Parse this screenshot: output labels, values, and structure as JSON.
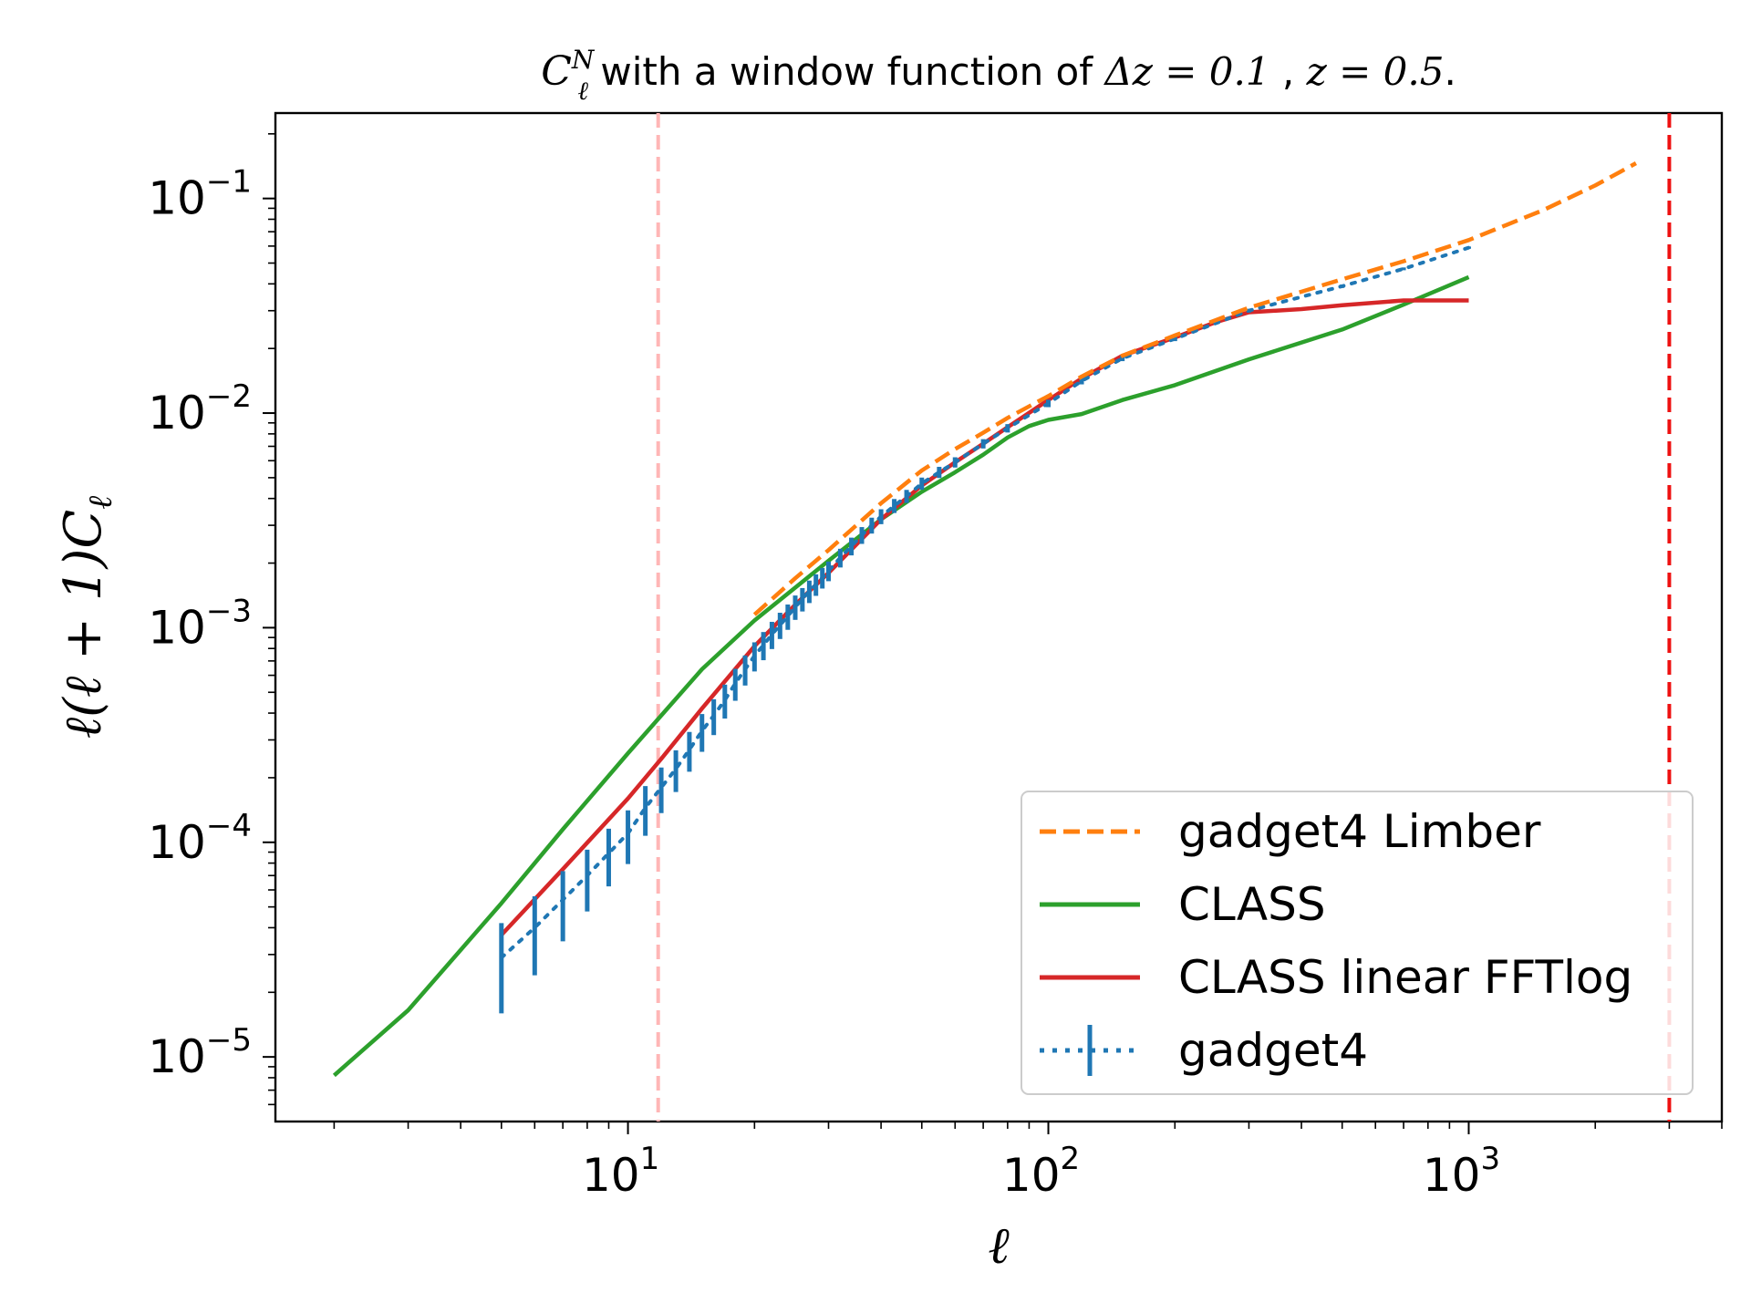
{
  "chart_data": {
    "type": "line",
    "title": "C_ℓ^N with a window function of Δz = 0.1 , z = 0.5.",
    "title_parts": {
      "symbol": "C",
      "sub": "ℓ",
      "sup": "N",
      "text1": " with a window function of ",
      "dz": "Δz = 0.1",
      "sep": " , ",
      "z": "z = 0.5",
      "end": "."
    },
    "xlabel": "ℓ",
    "ylabel": "ℓ(ℓ + 1)C_ℓ",
    "ylabel_parts": {
      "main": "ℓ(ℓ + 1)C",
      "sub": "ℓ"
    },
    "xscale": "log",
    "yscale": "log",
    "xlim": [
      1.45,
      4000
    ],
    "ylim": [
      5e-06,
      0.25
    ],
    "x_ticks": [
      {
        "value": 10,
        "base": "10",
        "exp": "1"
      },
      {
        "value": 100,
        "base": "10",
        "exp": "2"
      },
      {
        "value": 1000,
        "base": "10",
        "exp": "3"
      }
    ],
    "y_ticks": [
      {
        "value": 0.1,
        "base": "10",
        "exp": "−1"
      },
      {
        "value": 0.01,
        "base": "10",
        "exp": "−2"
      },
      {
        "value": 0.001,
        "base": "10",
        "exp": "−3"
      },
      {
        "value": 0.0001,
        "base": "10",
        "exp": "−4"
      },
      {
        "value": 1e-05,
        "base": "10",
        "exp": "−5"
      }
    ],
    "vlines": [
      {
        "x": 11.8,
        "color": "#ffb6b6"
      },
      {
        "x": 3000,
        "color": "#ee1111"
      }
    ],
    "legend_position": "lower-right",
    "series": [
      {
        "name": "gadget4 Limber",
        "color": "#ff7f0e",
        "style": "dashed",
        "x": [
          20,
          25,
          30,
          40,
          50,
          60,
          70,
          80,
          100,
          120,
          150,
          200,
          300,
          500,
          700,
          1000,
          1500,
          2000,
          2500
        ],
        "y": [
          0.00115,
          0.0017,
          0.0023,
          0.0038,
          0.0054,
          0.0068,
          0.0081,
          0.0095,
          0.012,
          0.0148,
          0.0185,
          0.023,
          0.031,
          0.042,
          0.051,
          0.064,
          0.088,
          0.115,
          0.146
        ]
      },
      {
        "name": "CLASS",
        "color": "#2ca02c",
        "style": "solid",
        "x": [
          2,
          3,
          5,
          7,
          10,
          15,
          20,
          30,
          40,
          50,
          60,
          70,
          80,
          90,
          100,
          120,
          150,
          200,
          300,
          500,
          700,
          1000
        ],
        "y": [
          8.2e-06,
          1.65e-05,
          5.2e-05,
          0.000115,
          0.00026,
          0.00064,
          0.00108,
          0.00205,
          0.0032,
          0.0043,
          0.0053,
          0.0064,
          0.0077,
          0.0087,
          0.0093,
          0.0099,
          0.0115,
          0.0135,
          0.0178,
          0.0245,
          0.032,
          0.043
        ]
      },
      {
        "name": "CLASS linear FFTlog",
        "color": "#d62728",
        "style": "solid",
        "x": [
          5,
          7,
          10,
          12,
          15,
          20,
          25,
          30,
          40,
          50,
          60,
          70,
          80,
          100,
          120,
          150,
          200,
          250,
          300,
          400,
          500,
          700,
          1000
        ],
        "y": [
          3.7e-05,
          7.5e-05,
          0.00016,
          0.000245,
          0.00042,
          0.00082,
          0.00128,
          0.0018,
          0.0032,
          0.0046,
          0.0059,
          0.0072,
          0.0086,
          0.0115,
          0.0145,
          0.0185,
          0.0225,
          0.0265,
          0.0295,
          0.0305,
          0.0318,
          0.0335,
          0.0335
        ]
      },
      {
        "name": "gadget4",
        "color": "#1f77b4",
        "style": "dotted-errorbar",
        "x": [
          5,
          6,
          7,
          8,
          9,
          10,
          11,
          12,
          13,
          14,
          15,
          16,
          17,
          18,
          19,
          20,
          21,
          22,
          23,
          24,
          25,
          26,
          27,
          28,
          29,
          30,
          32,
          34,
          36,
          38,
          40,
          43,
          46,
          50,
          55,
          60,
          70,
          80,
          100,
          120,
          150,
          200,
          300,
          500,
          700,
          1000
        ],
        "y": [
          2.9e-05,
          4e-05,
          5.4e-05,
          7e-05,
          8.9e-05,
          0.00011,
          0.000145,
          0.00018,
          0.00022,
          0.00027,
          0.00033,
          0.00039,
          0.00046,
          0.00055,
          0.00064,
          0.00074,
          0.00083,
          0.00093,
          0.00103,
          0.00113,
          0.00125,
          0.00136,
          0.00148,
          0.00159,
          0.00171,
          0.00184,
          0.00212,
          0.0024,
          0.0027,
          0.003,
          0.0033,
          0.0037,
          0.0041,
          0.0047,
          0.0053,
          0.0059,
          0.0072,
          0.0085,
          0.0111,
          0.0141,
          0.018,
          0.0222,
          0.03,
          0.039,
          0.047,
          0.059
        ],
        "err_frac": [
          0.45,
          0.4,
          0.36,
          0.32,
          0.3,
          0.28,
          0.26,
          0.24,
          0.22,
          0.21,
          0.2,
          0.19,
          0.18,
          0.17,
          0.16,
          0.155,
          0.15,
          0.145,
          0.14,
          0.135,
          0.13,
          0.125,
          0.12,
          0.115,
          0.11,
          0.105,
          0.1,
          0.095,
          0.09,
          0.085,
          0.08,
          0.075,
          0.07,
          0.065,
          0.06,
          0.055,
          0.05,
          0.045,
          0.04,
          0.035,
          0.03,
          0.025,
          0.02,
          0.018,
          0.015,
          0.012
        ]
      }
    ]
  }
}
